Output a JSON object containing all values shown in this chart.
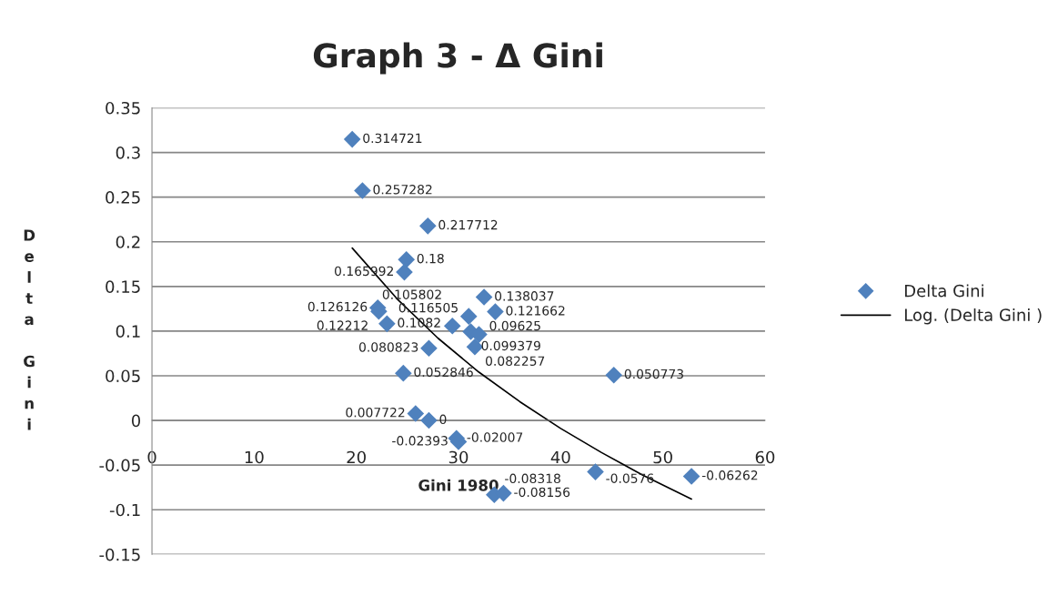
{
  "chart_data": {
    "type": "scatter",
    "title": "Graph 3 - Δ Gini",
    "xlabel": "Gini 1980",
    "ylabel": "Delta Gini",
    "xlim": [
      0,
      60
    ],
    "xticks": [
      0,
      10,
      20,
      30,
      40,
      50,
      60
    ],
    "ylim": [
      -0.15,
      0.35
    ],
    "yticks": [
      -0.15,
      -0.1,
      -0.05,
      0,
      0.05,
      0.1,
      0.15,
      0.2,
      0.25,
      0.3,
      0.35
    ],
    "grid": "y",
    "legend": "right",
    "marker": "diamond",
    "series": [
      {
        "name": "Delta Gini",
        "color": "#4f81bd",
        "x": [
          19.6,
          20.6,
          27.0,
          24.9,
          24.7,
          32.5,
          22.1,
          22.2,
          23.0,
          33.6,
          31.0,
          29.4,
          31.2,
          32.0,
          31.6,
          27.1,
          24.6,
          45.2,
          25.8,
          27.1,
          29.8,
          30.0,
          43.4,
          52.8,
          33.5,
          34.4
        ],
        "values": [
          0.314721,
          0.257282,
          0.217712,
          0.18,
          0.165992,
          0.138037,
          0.126126,
          0.12212,
          0.1082,
          0.121662,
          0.116505,
          0.105802,
          0.099379,
          0.09625,
          0.082257,
          0.080823,
          0.052846,
          0.050773,
          0.007722,
          0,
          -0.02007,
          -0.02393,
          -0.0576,
          -0.06262,
          -0.08318,
          -0.08156
        ],
        "value_labels": [
          "0.314721",
          "0.257282",
          "0.217712",
          "0.18",
          "0.165992",
          "0.138037",
          "0.126126",
          "0.12212",
          "0.1082",
          "0.121662",
          "0.116505",
          "0.105802",
          "0.099379",
          "0.09625",
          "0.082257",
          "0.080823",
          "0.052846",
          "0.050773",
          "0.007722",
          "0",
          "-0.02007",
          "-0.02393",
          "-0.0576",
          "-0.06262",
          "-0.08318",
          "-0.08156"
        ]
      },
      {
        "name": "Log. (Delta Gini )",
        "type": "line",
        "color": "#000000",
        "marker": "none",
        "x": [
          19.6,
          24,
          28,
          32,
          36,
          40,
          44,
          48,
          52.8
        ],
        "values": [
          0.193,
          0.136,
          0.092,
          0.054,
          0.021,
          -0.009,
          -0.036,
          -0.061,
          -0.088
        ]
      }
    ]
  }
}
